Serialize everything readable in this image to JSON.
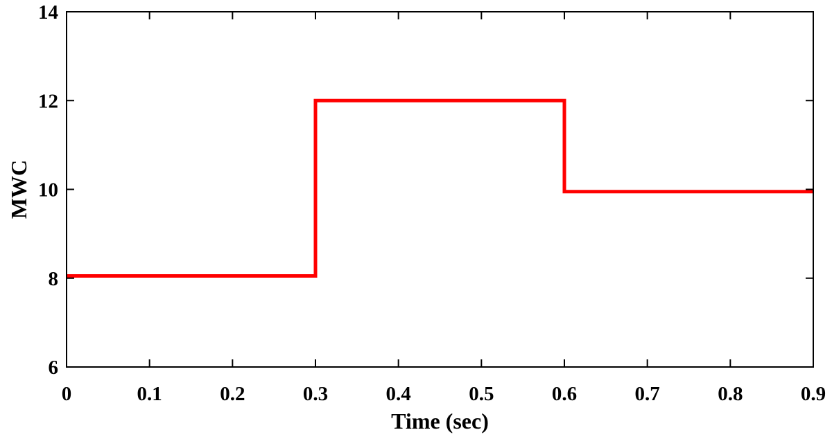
{
  "chart_data": {
    "type": "line",
    "title": "",
    "xlabel": "Time (sec)",
    "ylabel": "MWC",
    "xlim": [
      0,
      0.9
    ],
    "ylim": [
      6,
      14
    ],
    "grid": false,
    "xticks": [
      0,
      0.1,
      0.2,
      0.3,
      0.4,
      0.5,
      0.6,
      0.7,
      0.8,
      0.9
    ],
    "xtick_labels": [
      "0",
      "0.1",
      "0.2",
      "0.3",
      "0.4",
      "0.5",
      "0.6",
      "0.7",
      "0.8",
      "0.9"
    ],
    "yticks": [
      6,
      8,
      10,
      12,
      14
    ],
    "ytick_labels": [
      "6",
      "8",
      "10",
      "12",
      "14"
    ],
    "series": [
      {
        "color": "#ff0000",
        "x": [
          0,
          0.3,
          0.3,
          0.6,
          0.6,
          0.9
        ],
        "y": [
          8.05,
          8.05,
          12,
          12,
          9.95,
          9.95
        ]
      }
    ]
  }
}
